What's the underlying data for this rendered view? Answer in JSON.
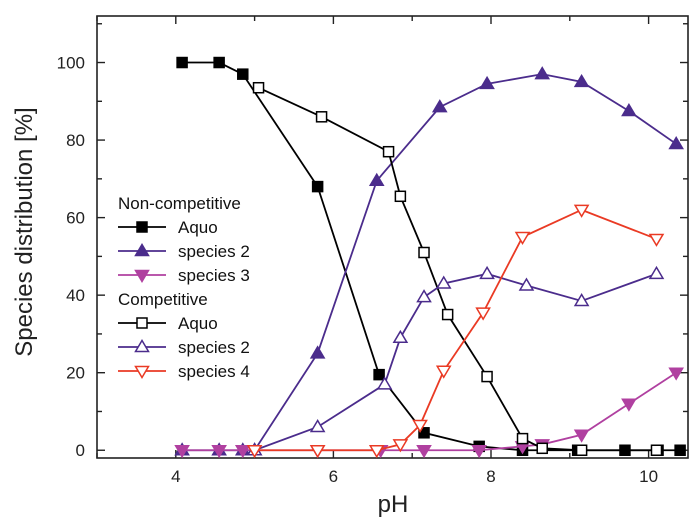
{
  "chart_data": {
    "type": "line",
    "xlabel": "pH",
    "ylabel": "Species distribution [%]",
    "xlim": [
      3.0,
      10.5
    ],
    "ylim": [
      -2,
      112
    ],
    "xticks": [
      4,
      6,
      8,
      10
    ],
    "yticks": [
      0,
      20,
      40,
      60,
      80,
      100
    ],
    "legend_position": "center-left",
    "legend_groups": [
      {
        "title": "Non-competitive",
        "series_indices": [
          0,
          1,
          2
        ]
      },
      {
        "title": "Competitive",
        "series_indices": [
          3,
          4,
          5
        ]
      }
    ],
    "series": [
      {
        "name": "Aquo",
        "group": "Non-competitive",
        "color": "#000000",
        "marker": "square",
        "filled": true,
        "x": [
          4.08,
          4.55,
          4.85,
          5.8,
          6.58,
          7.15,
          7.85,
          8.4,
          9.1,
          9.7,
          10.12,
          10.4
        ],
        "y": [
          100,
          100,
          97,
          68,
          19.5,
          4.5,
          1,
          0,
          0,
          0,
          0,
          0
        ]
      },
      {
        "name": "species 2",
        "group": "Non-competitive",
        "color": "#4b2c8c",
        "marker": "triangle-up",
        "filled": true,
        "x": [
          4.08,
          4.55,
          4.85,
          5.0,
          5.8,
          6.55,
          7.35,
          7.95,
          8.65,
          9.15,
          9.75,
          10.35
        ],
        "y": [
          0,
          0,
          0,
          0,
          25,
          69.5,
          88.5,
          94.5,
          97,
          95,
          87.5,
          79
        ]
      },
      {
        "name": "species 3",
        "group": "Non-competitive",
        "color": "#b040a0",
        "marker": "triangle-down",
        "filled": true,
        "x": [
          4.08,
          4.55,
          4.85,
          5.8,
          6.6,
          7.15,
          7.85,
          8.4,
          8.65,
          9.15,
          9.75,
          10.35
        ],
        "y": [
          0,
          0,
          0,
          0,
          0,
          0,
          0,
          1,
          1.5,
          4,
          12,
          20
        ]
      },
      {
        "name": "Aquo",
        "group": "Competitive",
        "color": "#000000",
        "marker": "square",
        "filled": false,
        "x": [
          5.05,
          5.85,
          6.7,
          6.85,
          7.15,
          7.45,
          7.95,
          8.4,
          8.65,
          9.15,
          10.1
        ],
        "y": [
          93.5,
          86,
          77,
          65.5,
          51,
          35,
          19,
          3,
          0.5,
          0,
          0
        ]
      },
      {
        "name": "species 2",
        "group": "Competitive",
        "color": "#4b2c8c",
        "marker": "triangle-up",
        "filled": false,
        "x": [
          5.0,
          5.8,
          6.65,
          6.85,
          7.15,
          7.4,
          7.95,
          8.45,
          9.15,
          10.1
        ],
        "y": [
          0,
          6,
          17,
          29,
          39.5,
          43,
          45.5,
          42.5,
          38.5,
          45.5
        ]
      },
      {
        "name": "species 4",
        "group": "Competitive",
        "color": "#ea3a24",
        "marker": "triangle-down",
        "filled": false,
        "x": [
          5.0,
          5.8,
          6.55,
          6.85,
          7.1,
          7.4,
          7.9,
          8.4,
          9.15,
          10.1
        ],
        "y": [
          0,
          0,
          0,
          1.5,
          6.5,
          20.5,
          35.5,
          55,
          62,
          54.5
        ]
      }
    ]
  }
}
